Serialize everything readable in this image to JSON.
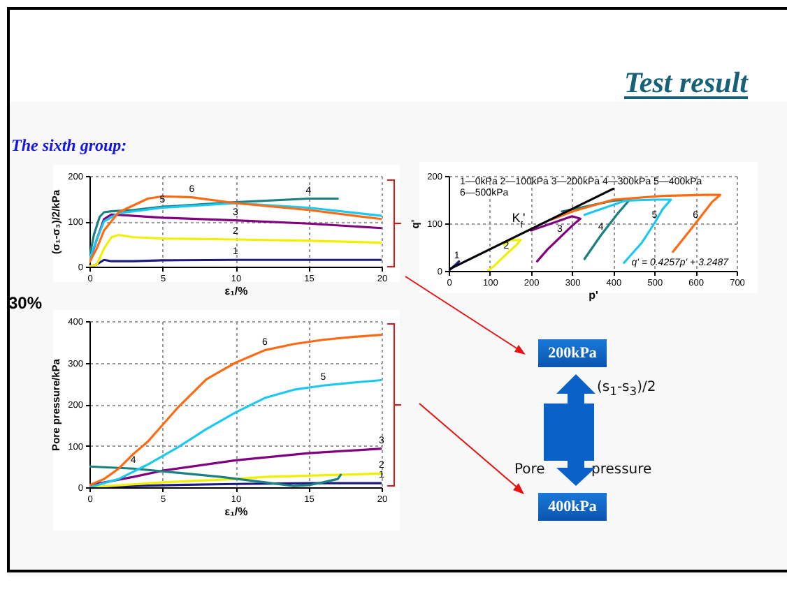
{
  "chart_data": [
    {
      "type": "line",
      "xlabel": "ε₁/%",
      "ylabel": "(σ₁-σ₃)/2/kPa",
      "xlim": [
        0,
        20
      ],
      "xticks": [
        0,
        5,
        10,
        15,
        20
      ],
      "ylim": [
        0,
        200
      ],
      "yticks": [
        0,
        100,
        200
      ],
      "grid": true,
      "series": [
        {
          "color": "#1a1a80",
          "x": [
            0,
            0.5,
            1,
            1.5,
            3,
            5,
            10,
            20
          ],
          "values": [
            0,
            5,
            15,
            12,
            12,
            14,
            15,
            15
          ]
        },
        {
          "color": "#f0f000",
          "x": [
            0,
            0.5,
            1,
            1.5,
            2,
            3,
            5,
            10,
            15,
            20
          ],
          "values": [
            0,
            5,
            40,
            65,
            70,
            65,
            62,
            60,
            57,
            53
          ]
        },
        {
          "color": "#800080",
          "x": [
            0,
            0.5,
            1,
            1.5,
            3,
            5,
            10,
            15,
            20
          ],
          "values": [
            10,
            60,
            105,
            115,
            112,
            108,
            102,
            95,
            85
          ]
        },
        {
          "color": "#1a8080",
          "x": [
            0,
            0.3,
            0.7,
            1,
            1.5,
            3,
            5,
            10,
            15,
            17
          ],
          "values": [
            20,
            70,
            110,
            120,
            122,
            125,
            132,
            142,
            150,
            150
          ]
        },
        {
          "color": "#1ac8f0",
          "x": [
            0,
            0.5,
            1,
            2,
            5,
            10,
            15,
            20
          ],
          "values": [
            15,
            60,
            100,
            118,
            130,
            140,
            130,
            112
          ]
        },
        {
          "color": "#ff6a10",
          "x": [
            0,
            0.5,
            1,
            2,
            4,
            5,
            7,
            10,
            15,
            20
          ],
          "values": [
            10,
            40,
            80,
            120,
            150,
            155,
            153,
            140,
            125,
            105
          ]
        }
      ],
      "annotations": [
        {
          "text": "6",
          "x": 7,
          "y": 153
        },
        {
          "text": "5",
          "x": 5,
          "y": 130
        },
        {
          "text": "4",
          "x": 15,
          "y": 150
        },
        {
          "text": "3",
          "x": 10,
          "y": 102
        },
        {
          "text": "2",
          "x": 10,
          "y": 60
        },
        {
          "text": "1",
          "x": 10,
          "y": 15
        }
      ]
    },
    {
      "type": "line",
      "xlabel": "p'",
      "ylabel": "q'",
      "xlim": [
        0,
        700
      ],
      "xticks": [
        0,
        100,
        200,
        300,
        400,
        500,
        600,
        700
      ],
      "ylim": [
        0,
        200
      ],
      "yticks": [
        0,
        100,
        200
      ],
      "grid": true,
      "series": [
        {
          "color": "#1a1a80",
          "x": [
            0,
            10,
            20,
            25,
            18
          ],
          "values": [
            0,
            8,
            15,
            20,
            14
          ]
        },
        {
          "color": "#f0f000",
          "x": [
            95,
            110,
            140,
            165,
            175,
            150,
            135
          ],
          "values": [
            0,
            10,
            35,
            55,
            65,
            65,
            55
          ]
        },
        {
          "color": "#800080",
          "x": [
            215,
            240,
            270,
            300,
            320,
            300,
            250,
            200
          ],
          "values": [
            20,
            45,
            70,
            95,
            110,
            115,
            100,
            85
          ]
        },
        {
          "color": "#1a8080",
          "x": [
            330,
            370,
            410,
            440,
            400,
            330,
            275
          ],
          "values": [
            25,
            75,
            120,
            150,
            148,
            135,
            125
          ]
        },
        {
          "color": "#1ac8f0",
          "x": [
            426,
            470,
            500,
            520,
            540,
            500,
            430,
            330
          ],
          "values": [
            17,
            60,
            100,
            130,
            150,
            150,
            148,
            118
          ]
        },
        {
          "color": "#ff6a10",
          "x": [
            545,
            600,
            640,
            660,
            620,
            520,
            400,
            300,
            250
          ],
          "values": [
            40,
            100,
            145,
            160,
            160,
            158,
            150,
            125,
            108
          ]
        },
        {
          "color": "#000000",
          "x": [
            0,
            400
          ],
          "values": [
            3,
            173
          ]
        }
      ],
      "annotations": [
        "1—0kPa 2—100kPa 3—200kPa 4—300kPa 5—400kPa",
        "6—500kPa",
        "q' = 0.4257p' + 3.2487",
        "K$_{f}$'",
        {
          "text": "1",
          "x": 20,
          "y": 15
        },
        {
          "text": "2",
          "x": 140,
          "y": 35
        },
        {
          "text": "3",
          "x": 270,
          "y": 70
        },
        {
          "text": "4",
          "x": 370,
          "y": 75
        },
        {
          "text": "5",
          "x": 500,
          "y": 100
        },
        {
          "text": "6",
          "x": 600,
          "y": 100
        }
      ]
    },
    {
      "type": "line",
      "xlabel": "ε₁/%",
      "ylabel": "Pore pressure/kPa",
      "xlim": [
        0,
        20
      ],
      "xticks": [
        0,
        5,
        10,
        15,
        20
      ],
      "ylim": [
        0,
        400
      ],
      "yticks": [
        0,
        100,
        200,
        300,
        400
      ],
      "grid": true,
      "series": [
        {
          "color": "#1a1a80",
          "x": [
            0,
            5,
            10,
            15,
            20
          ],
          "values": [
            0,
            5,
            8,
            10,
            10
          ]
        },
        {
          "color": "#f0f000",
          "x": [
            0,
            5,
            10,
            12,
            15,
            20
          ],
          "values": [
            0,
            12,
            20,
            25,
            28,
            33
          ]
        },
        {
          "color": "#800080",
          "x": [
            0,
            3,
            5,
            10,
            15,
            20
          ],
          "values": [
            5,
            25,
            40,
            65,
            82,
            93
          ]
        },
        {
          "color": "#1a8080",
          "x": [
            0,
            3,
            6,
            9,
            12,
            14,
            15,
            16,
            17,
            17.2
          ],
          "values": [
            50,
            45,
            35,
            25,
            12,
            3,
            5,
            12,
            20,
            30
          ]
        },
        {
          "color": "#1ac8f0",
          "x": [
            0,
            2,
            4,
            6,
            8,
            10,
            12,
            14,
            16,
            18,
            20
          ],
          "values": [
            0,
            20,
            55,
            95,
            140,
            180,
            215,
            235,
            245,
            252,
            258
          ]
        },
        {
          "color": "#ff6a10",
          "x": [
            0,
            1,
            2,
            3,
            4,
            5,
            6,
            7,
            8,
            9,
            10,
            12,
            14,
            16,
            18,
            20
          ],
          "values": [
            5,
            20,
            45,
            80,
            110,
            150,
            190,
            225,
            260,
            280,
            300,
            330,
            345,
            355,
            362,
            367
          ]
        }
      ],
      "annotations": [
        "30%",
        {
          "text": "6",
          "x": 12,
          "y": 330
        },
        {
          "text": "5",
          "x": 16,
          "y": 245
        },
        {
          "text": "3",
          "x": 20,
          "y": 93
        },
        {
          "text": "2",
          "x": 20,
          "y": 33
        },
        {
          "text": "1",
          "x": 20,
          "y": 10
        },
        {
          "text": "4",
          "x": 3,
          "y": 45
        }
      ]
    },
    {
      "type": "other",
      "annotations": [
        "Test result",
        "The sixth group:",
        "200kPa",
        "(s$_{1}$-s$_{3}$)/2",
        "Pore",
        "pressure",
        "400kPa"
      ]
    }
  ]
}
